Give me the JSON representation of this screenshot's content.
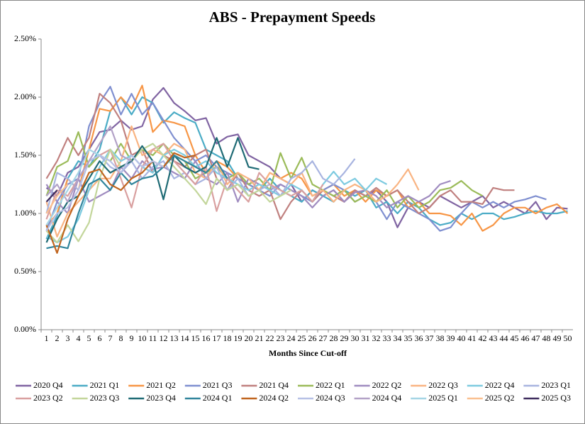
{
  "chart_data": {
    "type": "line",
    "title": "ABS - Prepayment Speeds",
    "x_label": "Months Since Cut-off",
    "categories": [
      1,
      2,
      3,
      4,
      5,
      6,
      7,
      8,
      9,
      10,
      11,
      12,
      13,
      14,
      15,
      16,
      17,
      18,
      19,
      20,
      21,
      22,
      23,
      24,
      25,
      26,
      27,
      28,
      29,
      30,
      31,
      32,
      33,
      34,
      35,
      36,
      37,
      38,
      39,
      40,
      41,
      42,
      43,
      44,
      45,
      46,
      47,
      48,
      49,
      50
    ],
    "ylim": [
      0,
      2.5
    ],
    "yticks": [
      {
        "value": 0,
        "label": "0.00%"
      },
      {
        "value": 0.5,
        "label": "0.50%"
      },
      {
        "value": 1,
        "label": "1.00%"
      },
      {
        "value": 1.5,
        "label": "1.50%"
      },
      {
        "value": 2,
        "label": "2.00%"
      },
      {
        "value": 2.5,
        "label": "2.50%"
      }
    ],
    "grid": false,
    "legend": "bottom",
    "series": [
      {
        "name": "2020 Q4",
        "color": "#8064a2",
        "values": [
          1.22,
          1.15,
          1.35,
          1.4,
          1.55,
          1.7,
          1.72,
          1.8,
          1.72,
          1.75,
          1.98,
          2.08,
          1.95,
          1.88,
          1.8,
          1.82,
          1.6,
          1.66,
          1.68,
          1.5,
          1.45,
          1.4,
          1.3,
          1.25,
          1.1,
          1.2,
          1.15,
          1.2,
          1.1,
          1.2,
          1.15,
          1.2,
          1.1,
          0.88,
          1.05,
          1.1,
          1.05,
          1.15,
          1.1,
          1.05,
          1.1,
          1.15,
          1.05,
          1.1,
          1.05,
          1.0,
          1.1,
          0.95,
          1.05,
          1.04
        ]
      },
      {
        "name": "2021 Q1",
        "color": "#4bacc6",
        "values": [
          0.78,
          0.98,
          1.3,
          1.45,
          1.4,
          1.55,
          1.88,
          2.0,
          1.85,
          2.0,
          1.95,
          1.78,
          1.87,
          1.82,
          1.78,
          1.55,
          1.5,
          1.45,
          1.3,
          1.25,
          1.2,
          1.3,
          1.2,
          1.15,
          1.1,
          1.2,
          1.15,
          1.1,
          1.2,
          1.15,
          1.2,
          1.05,
          1.1,
          1.0,
          1.1,
          1.05,
          0.95,
          0.9,
          0.92,
          1.0,
          0.95,
          1.0,
          1.0,
          0.95,
          0.97,
          1.0,
          1.02,
          1.0,
          1.0,
          1.02
        ]
      },
      {
        "name": "2021 Q2",
        "color": "#f79646",
        "values": [
          0.88,
          1.0,
          1.3,
          1.2,
          1.55,
          1.9,
          1.88,
          2.0,
          1.9,
          2.1,
          1.7,
          1.8,
          1.78,
          1.75,
          1.5,
          1.35,
          1.45,
          1.4,
          1.3,
          1.25,
          1.2,
          1.35,
          1.3,
          1.35,
          1.3,
          1.15,
          1.2,
          1.25,
          1.15,
          1.2,
          1.1,
          1.2,
          1.15,
          1.2,
          1.05,
          1.1,
          1.0,
          1.0,
          0.98,
          0.9,
          1.0,
          0.85,
          0.9,
          1.0,
          1.05,
          1.05,
          1.0,
          1.05,
          1.08,
          1.0
        ]
      },
      {
        "name": "2021 Q3",
        "color": "#7f8fd0",
        "values": [
          0.85,
          1.1,
          1.25,
          1.3,
          1.75,
          1.95,
          2.09,
          1.85,
          2.03,
          1.85,
          1.95,
          1.8,
          1.65,
          1.55,
          1.45,
          1.5,
          1.4,
          1.35,
          1.3,
          1.25,
          1.2,
          1.15,
          1.25,
          1.2,
          1.15,
          1.1,
          1.2,
          1.25,
          1.2,
          1.1,
          1.15,
          1.1,
          0.95,
          1.1,
          1.05,
          1.0,
          0.95,
          0.85,
          0.88,
          1.0,
          1.1,
          1.05,
          1.1,
          1.05,
          1.1,
          1.12,
          1.15,
          1.12,
          null,
          null
        ]
      },
      {
        "name": "2021 Q4",
        "color": "#c0807f",
        "values": [
          1.3,
          1.45,
          1.65,
          1.5,
          1.65,
          2.03,
          1.95,
          1.8,
          1.5,
          1.55,
          1.35,
          1.5,
          1.45,
          1.4,
          1.5,
          1.55,
          1.3,
          1.2,
          1.35,
          1.2,
          1.15,
          1.2,
          0.95,
          1.1,
          1.2,
          1.1,
          1.2,
          1.15,
          1.1,
          1.2,
          1.15,
          1.22,
          1.15,
          1.2,
          1.1,
          1.0,
          1.05,
          1.15,
          1.2,
          1.1,
          1.1,
          1.08,
          1.22,
          1.2,
          1.2,
          null,
          null,
          null,
          null,
          null
        ]
      },
      {
        "name": "2022 Q1",
        "color": "#9bbb59",
        "values": [
          1.15,
          1.4,
          1.45,
          1.7,
          1.4,
          1.5,
          1.45,
          1.6,
          1.45,
          1.55,
          1.5,
          1.6,
          1.5,
          1.45,
          1.3,
          1.35,
          1.4,
          1.3,
          1.35,
          1.25,
          1.3,
          1.2,
          1.52,
          1.3,
          1.48,
          1.25,
          1.2,
          1.15,
          1.2,
          1.1,
          1.15,
          1.1,
          1.2,
          1.05,
          1.15,
          1.05,
          1.1,
          1.2,
          1.22,
          1.28,
          1.2,
          1.15,
          null,
          null,
          null,
          null,
          null,
          null,
          null,
          null
        ]
      },
      {
        "name": "2022 Q2",
        "color": "#a08cc0",
        "values": [
          1.25,
          1.1,
          1.0,
          1.3,
          1.1,
          1.15,
          1.2,
          1.4,
          1.3,
          1.45,
          1.38,
          1.4,
          1.35,
          1.3,
          1.45,
          1.3,
          1.25,
          1.35,
          1.1,
          1.3,
          1.25,
          1.2,
          1.25,
          1.2,
          1.15,
          1.05,
          1.15,
          1.2,
          1.1,
          1.18,
          1.2,
          1.15,
          1.05,
          1.1,
          1.15,
          1.1,
          1.15,
          1.25,
          1.28,
          null,
          null,
          null,
          null,
          null,
          null,
          null,
          null,
          null,
          null,
          null
        ]
      },
      {
        "name": "2022 Q3",
        "color": "#f9b482",
        "values": [
          1.1,
          0.8,
          1.0,
          1.1,
          1.2,
          1.3,
          1.3,
          1.45,
          1.75,
          1.5,
          1.55,
          1.5,
          1.6,
          1.55,
          1.35,
          1.3,
          1.45,
          1.25,
          1.35,
          1.3,
          1.2,
          1.35,
          1.3,
          1.25,
          1.35,
          1.15,
          1.2,
          1.1,
          1.2,
          1.25,
          1.2,
          1.1,
          1.15,
          1.25,
          1.38,
          1.2,
          null,
          null,
          null,
          null,
          null,
          null,
          null,
          null,
          null,
          null,
          null,
          null,
          null,
          null
        ]
      },
      {
        "name": "2022 Q4",
        "color": "#7ecbe0",
        "values": [
          0.8,
          0.75,
          0.8,
          0.95,
          1.2,
          1.4,
          1.55,
          1.45,
          1.5,
          1.4,
          1.35,
          1.5,
          1.55,
          1.5,
          1.4,
          1.45,
          1.35,
          1.3,
          1.25,
          1.2,
          1.25,
          1.2,
          1.15,
          1.25,
          1.2,
          1.1,
          1.25,
          1.36,
          1.25,
          1.3,
          1.2,
          1.3,
          1.25,
          null,
          null,
          null,
          null,
          null,
          null,
          null,
          null,
          null,
          null,
          null,
          null,
          null,
          null,
          null,
          null,
          null
        ]
      },
      {
        "name": "2023 Q1",
        "color": "#a8b4e0",
        "values": [
          1.0,
          1.35,
          1.3,
          1.2,
          1.45,
          1.5,
          1.4,
          1.35,
          1.45,
          1.3,
          1.4,
          1.45,
          1.3,
          1.35,
          1.25,
          1.3,
          1.4,
          1.2,
          1.3,
          1.15,
          1.2,
          1.25,
          1.15,
          1.3,
          1.35,
          1.45,
          1.3,
          1.25,
          1.35,
          1.47,
          null,
          null,
          null,
          null,
          null,
          null,
          null,
          null,
          null,
          null,
          null,
          null,
          null,
          null,
          null,
          null,
          null,
          null,
          null,
          null
        ]
      },
      {
        "name": "2023 Q2",
        "color": "#d9a0a0",
        "values": [
          0.95,
          1.2,
          1.15,
          1.3,
          1.45,
          1.5,
          1.55,
          1.3,
          1.05,
          1.4,
          1.55,
          1.6,
          1.45,
          1.35,
          1.25,
          1.4,
          1.02,
          1.3,
          1.2,
          1.1,
          1.35,
          1.25,
          1.2,
          1.15,
          1.2,
          1.1,
          1.25,
          null,
          null,
          null,
          null,
          null,
          null,
          null,
          null,
          null,
          null,
          null,
          null,
          null,
          null,
          null,
          null,
          null,
          null,
          null,
          null,
          null,
          null,
          null
        ]
      },
      {
        "name": "2023 Q3",
        "color": "#c3d69b",
        "values": [
          0.85,
          0.75,
          0.9,
          0.76,
          0.92,
          1.3,
          1.55,
          1.4,
          1.45,
          1.55,
          1.6,
          1.5,
          1.4,
          1.3,
          1.2,
          1.08,
          1.3,
          1.2,
          1.25,
          1.15,
          1.2,
          1.1,
          1.15,
          1.2,
          null,
          null,
          null,
          null,
          null,
          null,
          null,
          null,
          null,
          null,
          null,
          null,
          null,
          null,
          null,
          null,
          null,
          null,
          null,
          null,
          null,
          null,
          null,
          null,
          null,
          null
        ]
      },
      {
        "name": "2023 Q4",
        "color": "#1f6b75",
        "values": [
          0.75,
          0.95,
          1.1,
          1.15,
          1.3,
          1.45,
          1.35,
          1.4,
          1.45,
          1.58,
          1.45,
          1.12,
          1.5,
          1.4,
          1.35,
          1.4,
          1.65,
          1.4,
          1.65,
          1.4,
          1.38,
          null,
          null,
          null,
          null,
          null,
          null,
          null,
          null,
          null,
          null,
          null,
          null,
          null,
          null,
          null,
          null,
          null,
          null,
          null,
          null,
          null,
          null,
          null,
          null,
          null,
          null,
          null,
          null,
          null
        ]
      },
      {
        "name": "2024 Q1",
        "color": "#31859c",
        "values": [
          0.7,
          0.72,
          0.7,
          1.0,
          1.25,
          1.3,
          1.2,
          1.35,
          1.25,
          1.3,
          1.32,
          1.4,
          1.5,
          1.45,
          1.4,
          1.35,
          1.45,
          1.3,
          null,
          null,
          null,
          null,
          null,
          null,
          null,
          null,
          null,
          null,
          null,
          null,
          null,
          null,
          null,
          null,
          null,
          null,
          null,
          null,
          null,
          null,
          null,
          null,
          null,
          null,
          null,
          null,
          null,
          null,
          null,
          null
        ]
      },
      {
        "name": "2024 Q2",
        "color": "#c0651f",
        "values": [
          0.9,
          0.66,
          0.95,
          1.15,
          1.35,
          1.38,
          1.25,
          1.2,
          1.3,
          1.35,
          1.45,
          1.4,
          1.52,
          1.48,
          1.5,
          null,
          null,
          null,
          null,
          null,
          null,
          null,
          null,
          null,
          null,
          null,
          null,
          null,
          null,
          null,
          null,
          null,
          null,
          null,
          null,
          null,
          null,
          null,
          null,
          null,
          null,
          null,
          null,
          null,
          null,
          null,
          null,
          null,
          null,
          null
        ]
      },
      {
        "name": "2024 Q3",
        "color": "#b7c1e6",
        "values": [
          0.85,
          1.0,
          1.05,
          1.2,
          1.45,
          1.5,
          1.45,
          1.35,
          1.5,
          1.4,
          1.45,
          1.4,
          null,
          null,
          null,
          null,
          null,
          null,
          null,
          null,
          null,
          null,
          null,
          null,
          null,
          null,
          null,
          null,
          null,
          null,
          null,
          null,
          null,
          null,
          null,
          null,
          null,
          null,
          null,
          null,
          null,
          null,
          null,
          null,
          null,
          null,
          null,
          null,
          null,
          null
        ]
      },
      {
        "name": "2024 Q4",
        "color": "#b3a2c7",
        "values": [
          1.15,
          1.25,
          1.1,
          1.3,
          1.45,
          1.6,
          1.75,
          1.5,
          1.45,
          null,
          null,
          null,
          null,
          null,
          null,
          null,
          null,
          null,
          null,
          null,
          null,
          null,
          null,
          null,
          null,
          null,
          null,
          null,
          null,
          null,
          null,
          null,
          null,
          null,
          null,
          null,
          null,
          null,
          null,
          null,
          null,
          null,
          null,
          null,
          null,
          null,
          null,
          null,
          null,
          null
        ]
      },
      {
        "name": "2025 Q1",
        "color": "#a5d5e5",
        "values": [
          0.9,
          1.05,
          1.2,
          1.35,
          1.55,
          1.5,
          null,
          null,
          null,
          null,
          null,
          null,
          null,
          null,
          null,
          null,
          null,
          null,
          null,
          null,
          null,
          null,
          null,
          null,
          null,
          null,
          null,
          null,
          null,
          null,
          null,
          null,
          null,
          null,
          null,
          null,
          null,
          null,
          null,
          null,
          null,
          null,
          null,
          null,
          null,
          null,
          null,
          null,
          null,
          null
        ]
      },
      {
        "name": "2025 Q2",
        "color": "#fac090",
        "values": [
          1.0,
          1.15,
          1.25,
          null,
          null,
          null,
          null,
          null,
          null,
          null,
          null,
          null,
          null,
          null,
          null,
          null,
          null,
          null,
          null,
          null,
          null,
          null,
          null,
          null,
          null,
          null,
          null,
          null,
          null,
          null,
          null,
          null,
          null,
          null,
          null,
          null,
          null,
          null,
          null,
          null,
          null,
          null,
          null,
          null,
          null,
          null,
          null,
          null,
          null,
          null
        ]
      },
      {
        "name": "2025 Q3",
        "color": "#3f2d5e",
        "values": [
          1.1,
          1.2,
          null,
          null,
          null,
          null,
          null,
          null,
          null,
          null,
          null,
          null,
          null,
          null,
          null,
          null,
          null,
          null,
          null,
          null,
          null,
          null,
          null,
          null,
          null,
          null,
          null,
          null,
          null,
          null,
          null,
          null,
          null,
          null,
          null,
          null,
          null,
          null,
          null,
          null,
          null,
          null,
          null,
          null,
          null,
          null,
          null,
          null,
          null,
          null
        ]
      }
    ]
  }
}
